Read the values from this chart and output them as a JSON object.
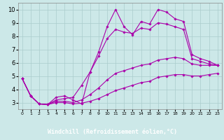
{
  "xlabel": "Windchill (Refroidissement éolien,°C)",
  "bg_color": "#cce8e8",
  "line_color": "#aa00aa",
  "grid_color": "#aacccc",
  "xlim": [
    -0.5,
    23.5
  ],
  "ylim": [
    2.5,
    10.5
  ],
  "xticks": [
    0,
    1,
    2,
    3,
    4,
    5,
    6,
    7,
    8,
    9,
    10,
    11,
    12,
    13,
    14,
    15,
    16,
    17,
    18,
    19,
    20,
    21,
    22,
    23
  ],
  "yticks": [
    3,
    4,
    5,
    6,
    7,
    8,
    9,
    10
  ],
  "lines": [
    {
      "x": [
        0,
        1,
        2,
        3,
        4,
        5,
        6,
        7,
        8,
        9,
        10,
        11,
        12,
        13,
        14,
        15,
        16,
        17,
        18,
        19,
        20,
        21,
        22,
        23
      ],
      "y": [
        4.8,
        3.5,
        2.9,
        2.85,
        3.4,
        3.5,
        3.2,
        2.9,
        5.3,
        6.8,
        8.7,
        10.0,
        8.7,
        8.1,
        9.1,
        8.9,
        10.0,
        9.8,
        9.3,
        9.1,
        6.6,
        6.3,
        6.1,
        5.8
      ]
    },
    {
      "x": [
        0,
        1,
        2,
        3,
        4,
        5,
        6,
        7,
        8,
        9,
        10,
        11,
        12,
        13,
        14,
        15,
        16,
        17,
        18,
        19,
        20,
        21,
        22,
        23
      ],
      "y": [
        4.8,
        3.5,
        2.9,
        2.85,
        3.2,
        3.3,
        3.4,
        4.3,
        5.3,
        6.5,
        7.8,
        8.5,
        8.3,
        8.2,
        8.6,
        8.5,
        9.0,
        8.9,
        8.7,
        8.5,
        6.3,
        6.1,
        5.9,
        5.8
      ]
    },
    {
      "x": [
        0,
        1,
        2,
        3,
        4,
        5,
        6,
        7,
        8,
        9,
        10,
        11,
        12,
        13,
        14,
        15,
        16,
        17,
        18,
        19,
        20,
        21,
        22,
        23
      ],
      "y": [
        4.8,
        3.5,
        2.9,
        2.85,
        3.1,
        3.1,
        3.0,
        3.2,
        3.6,
        4.1,
        4.7,
        5.2,
        5.4,
        5.6,
        5.8,
        5.9,
        6.2,
        6.3,
        6.4,
        6.3,
        5.9,
        5.8,
        5.8,
        5.8
      ]
    },
    {
      "x": [
        0,
        1,
        2,
        3,
        4,
        5,
        6,
        7,
        8,
        9,
        10,
        11,
        12,
        13,
        14,
        15,
        16,
        17,
        18,
        19,
        20,
        21,
        22,
        23
      ],
      "y": [
        4.8,
        3.5,
        2.9,
        2.85,
        3.0,
        3.0,
        2.9,
        2.95,
        3.1,
        3.3,
        3.6,
        3.9,
        4.1,
        4.3,
        4.5,
        4.6,
        4.9,
        5.0,
        5.1,
        5.1,
        5.0,
        5.0,
        5.1,
        5.2
      ]
    }
  ],
  "xlabel_bg": "#aa00aa",
  "xlabel_fg": "#ffffff",
  "xlabel_fontsize": 6,
  "tick_fontsize_x": 4.5,
  "tick_fontsize_y": 6
}
